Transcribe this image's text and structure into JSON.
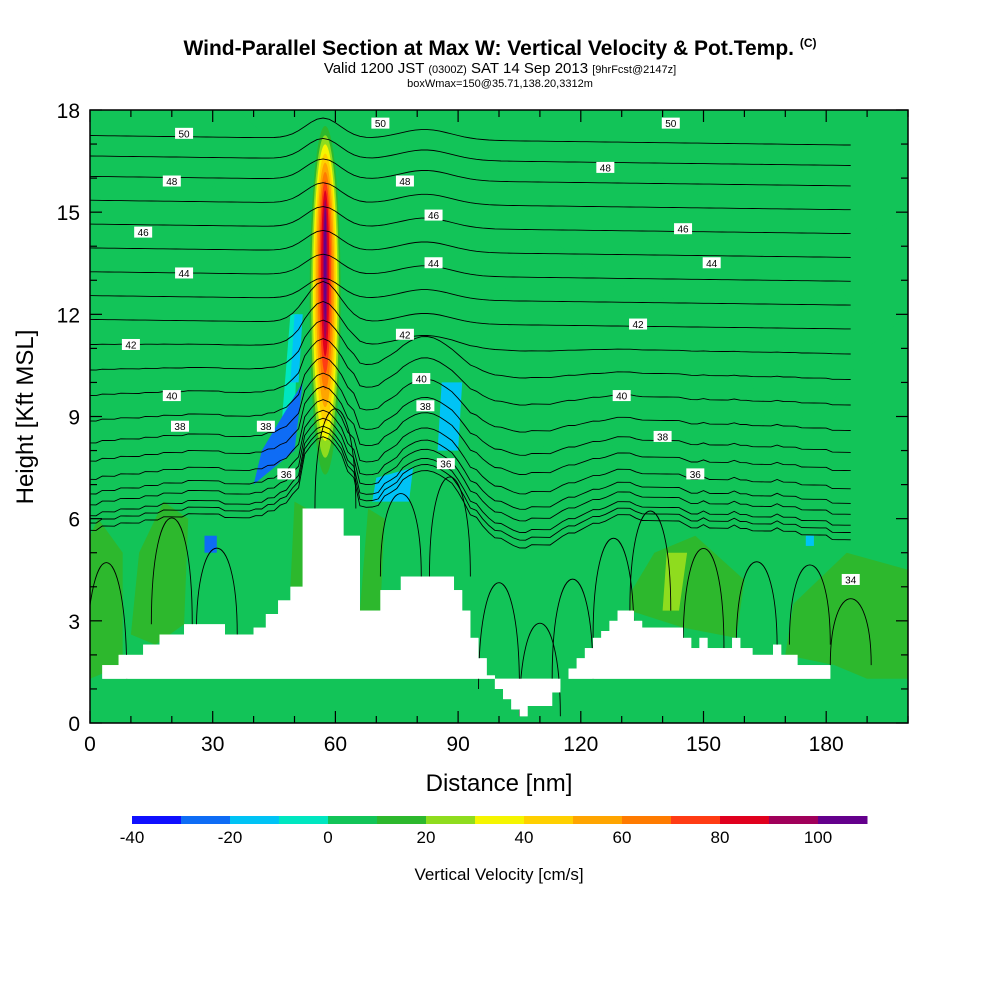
{
  "chart_data": {
    "type": "heatmap",
    "title": "Wind-Parallel Section at Max W: Vertical Velocity & Pot.Temp.",
    "title_mark": "(C)",
    "subtitle_main": "Valid 1200 JST",
    "subtitle_utc": "(0300Z)",
    "subtitle_date": "SAT 14 Sep 2013",
    "subtitle_fcst": "[9hrFcst@2147z]",
    "subtitle2": "boxWmax=150@35.71,138.20,3312m",
    "xlabel": "Distance [nm]",
    "ylabel": "Height [Kft MSL]",
    "xlim": [
      0,
      200
    ],
    "ylim": [
      0,
      18
    ],
    "x_ticks": [
      "0",
      "30",
      "60",
      "90",
      "120",
      "150",
      "180"
    ],
    "y_ticks": [
      "0",
      "3",
      "6",
      "9",
      "12",
      "15",
      "18"
    ],
    "colorbar": {
      "label": "Vertical Velocity [cm/s]",
      "tick_labels": [
        "-40",
        "-20",
        "0",
        "20",
        "40",
        "60",
        "80",
        "100"
      ],
      "bounds": [
        -40,
        -30,
        -20,
        -10,
        0,
        10,
        20,
        30,
        40,
        50,
        60,
        70,
        80,
        90,
        100,
        110
      ],
      "colors": [
        "#1010ff",
        "#0e6cf5",
        "#00c3f5",
        "#00e6c0",
        "#12c458",
        "#2db82d",
        "#8fdc1e",
        "#f5f500",
        "#ffd000",
        "#ffa500",
        "#ff7b00",
        "#ff3c14",
        "#e0001e",
        "#a0005a",
        "#64008c"
      ]
    },
    "background_value": 0,
    "terrain_profile": {
      "x": [
        0,
        3,
        3,
        7,
        7,
        13,
        13,
        17,
        17,
        23,
        23,
        33,
        33,
        40,
        40,
        43,
        43,
        46,
        46,
        49,
        49,
        52,
        52,
        62,
        62,
        66,
        66,
        71,
        71,
        76,
        76,
        89,
        89,
        91,
        91,
        93,
        93,
        95,
        95,
        97,
        97,
        99,
        99,
        101,
        101,
        103,
        103,
        105,
        105,
        107,
        107,
        113,
        113,
        115,
        115,
        117,
        117,
        119,
        119,
        121,
        121,
        123,
        123,
        125,
        125,
        127,
        127,
        129,
        129,
        131,
        131,
        133,
        133,
        135,
        135,
        145,
        145,
        147,
        147,
        149,
        149,
        151,
        151,
        157,
        157,
        159,
        159,
        162,
        162,
        167,
        167,
        169,
        169,
        173,
        173,
        181,
        181,
        187,
        187,
        200
      ],
      "h": [
        1.3,
        1.3,
        1.7,
        1.7,
        2.0,
        2.0,
        2.3,
        2.3,
        2.6,
        2.6,
        2.9,
        2.9,
        2.6,
        2.6,
        2.8,
        2.8,
        3.2,
        3.2,
        3.6,
        3.6,
        4.0,
        4.0,
        6.3,
        6.3,
        5.5,
        5.5,
        3.3,
        3.3,
        3.9,
        3.9,
        4.3,
        4.3,
        3.9,
        3.9,
        3.3,
        3.3,
        2.5,
        2.5,
        1.9,
        1.9,
        1.4,
        1.4,
        1.0,
        1.0,
        0.7,
        0.7,
        0.4,
        0.4,
        0.2,
        0.2,
        0.5,
        0.5,
        0.9,
        0.9,
        1.3,
        1.3,
        1.6,
        1.6,
        1.9,
        1.9,
        2.2,
        2.2,
        2.5,
        2.5,
        2.7,
        2.7,
        3.0,
        3.0,
        3.3,
        3.3,
        3.3,
        3.3,
        3.0,
        3.0,
        2.8,
        2.8,
        2.5,
        2.5,
        2.2,
        2.2,
        2.5,
        2.5,
        2.2,
        2.2,
        2.5,
        2.5,
        2.2,
        2.2,
        2.0,
        2.0,
        2.3,
        2.3,
        2.0,
        2.0,
        1.7,
        1.7,
        1.3,
        1.3
      ]
    },
    "w_regions": [
      {
        "value": 5,
        "x": [
          0,
          4,
          6,
          2
        ],
        "y": [
          13.5,
          13,
          18,
          18
        ]
      },
      {
        "value": 5,
        "x": [
          22,
          38,
          40,
          24
        ],
        "y": [
          16,
          15.5,
          18,
          18
        ]
      },
      {
        "value": 5,
        "x": [
          34,
          44,
          45,
          36,
          24,
          30
        ],
        "y": [
          14.5,
          14,
          17,
          18,
          18,
          16
        ]
      },
      {
        "value": 5,
        "x": [
          63,
          78,
          80,
          70
        ],
        "y": [
          12,
          12,
          16.5,
          18
        ]
      },
      {
        "value": 5,
        "x": [
          65,
          85,
          90,
          80,
          68
        ],
        "y": [
          11,
          9,
          7.5,
          8.5,
          9.5
        ]
      },
      {
        "value": 5,
        "x": [
          92,
          98,
          110,
          125,
          140,
          150,
          160,
          165,
          150,
          135,
          120,
          105,
          95,
          92
        ],
        "y": [
          8,
          12,
          14.5,
          13,
          12.5,
          10.5,
          10.5,
          9,
          8.5,
          8,
          8.3,
          8,
          7.5,
          8
        ]
      },
      {
        "value": 5,
        "x": [
          136,
          155,
          160,
          162,
          158,
          140,
          136
        ],
        "y": [
          17,
          18,
          18,
          16,
          15,
          16,
          17
        ]
      },
      {
        "value": 5,
        "x": [
          165,
          172,
          182,
          188,
          192,
          200,
          200,
          190,
          182,
          175,
          170,
          165
        ],
        "y": [
          9,
          12,
          13,
          12,
          14.5,
          15,
          12,
          11,
          9.5,
          9,
          8.8,
          9
        ]
      },
      {
        "value": 5,
        "x": [
          165,
          175,
          185,
          190,
          180,
          170,
          165
        ],
        "y": [
          18,
          18,
          16,
          15,
          14.5,
          16,
          18
        ]
      },
      {
        "value": 5,
        "x": [
          197,
          200,
          200,
          197
        ],
        "y": [
          16,
          16,
          18,
          18
        ]
      },
      {
        "value": 5,
        "x": [
          195,
          200,
          200,
          195
        ],
        "y": [
          6,
          6,
          8,
          8
        ]
      },
      {
        "value": 5,
        "x": [
          36,
          42,
          48,
          52,
          46,
          38,
          33
        ],
        "y": [
          7.5,
          8.2,
          9,
          7.5,
          6.5,
          6,
          7
        ]
      },
      {
        "value": 15,
        "x": [
          10,
          16,
          23,
          24,
          18,
          12
        ],
        "y": [
          2.6,
          2.3,
          2.9,
          6,
          6.5,
          5
        ]
      },
      {
        "value": 15,
        "x": [
          0,
          8,
          8,
          2,
          0
        ],
        "y": [
          1.3,
          1.7,
          5,
          6,
          5.5
        ]
      },
      {
        "value": 15,
        "x": [
          49,
          52,
          53,
          50
        ],
        "y": [
          4,
          4,
          6.3,
          6.5
        ]
      },
      {
        "value": 15,
        "x": [
          66,
          71,
          72,
          68
        ],
        "y": [
          3.3,
          3.3,
          6,
          6.3
        ]
      },
      {
        "value": 15,
        "x": [
          132,
          145,
          158,
          160,
          148,
          138,
          132
        ],
        "y": [
          3.3,
          2.8,
          2.5,
          4.2,
          5.5,
          5,
          3.8
        ]
      },
      {
        "value": 15,
        "x": [
          170,
          182,
          190,
          200,
          200,
          185,
          172
        ],
        "y": [
          2,
          1.7,
          1.3,
          1.3,
          4.5,
          5,
          3.5
        ]
      },
      {
        "value": 5,
        "x": [
          95,
          100,
          110,
          120,
          122,
          110,
          98
        ],
        "y": [
          2.5,
          1.0,
          0.3,
          1.6,
          4,
          4.5,
          3.8
        ]
      },
      {
        "value": 25,
        "x": [
          140,
          144,
          146,
          141
        ],
        "y": [
          3.3,
          3.3,
          5,
          5
        ]
      },
      {
        "value": -5,
        "x": [
          47,
          50,
          51,
          49
        ],
        "y": [
          9,
          9,
          12,
          12
        ]
      },
      {
        "value": -15,
        "x": [
          49,
          51,
          52,
          50
        ],
        "y": [
          10,
          10,
          12,
          12
        ]
      },
      {
        "value": -25,
        "x": [
          40,
          50,
          52,
          42
        ],
        "y": [
          7,
          8,
          10,
          8
        ]
      },
      {
        "value": -15,
        "x": [
          69,
          78,
          79,
          70
        ],
        "y": [
          6.5,
          6.5,
          7.5,
          7.2
        ]
      },
      {
        "value": -15,
        "x": [
          85,
          90,
          91,
          86
        ],
        "y": [
          8,
          8,
          10,
          10
        ]
      },
      {
        "value": -15,
        "x": [
          175,
          177,
          177,
          175
        ],
        "y": [
          5.2,
          5.2,
          5.5,
          5.5
        ]
      },
      {
        "value": -25,
        "x": [
          28,
          31,
          31,
          28
        ],
        "y": [
          5,
          5,
          5.5,
          5.5
        ]
      }
    ],
    "updraft_core": {
      "x": 57.5,
      "y_top": 17.8,
      "y_bottom": 6.8,
      "levels": [
        {
          "value": 5,
          "hw": 4.2
        },
        {
          "value": 15,
          "hw": 3.8
        },
        {
          "value": 25,
          "hw": 3.4
        },
        {
          "value": 35,
          "hw": 3.0
        },
        {
          "value": 45,
          "hw": 2.6
        },
        {
          "value": 55,
          "hw": 2.2
        },
        {
          "value": 65,
          "hw": 1.8
        },
        {
          "value": 75,
          "hw": 1.4
        },
        {
          "value": 85,
          "hw": 1.0
        },
        {
          "value": 95,
          "hw": 0.6
        },
        {
          "value": 105,
          "hw": 0.3
        }
      ]
    },
    "theta_contours": [
      {
        "label": "34",
        "base": 5.9,
        "label_at": {
          "x": 186,
          "y": 4.2
        }
      },
      {
        "label": "34",
        "base": 6.1
      },
      {
        "label": "34",
        "base": 6.3
      },
      {
        "label": "34",
        "base": 6.6
      },
      {
        "label": "34",
        "base": 6.9
      },
      {
        "label": "36",
        "base": 7.3,
        "label_at": {
          "x": 148,
          "y": 7.3
        }
      },
      {
        "label": "36",
        "base": 7.8
      },
      {
        "label": "38",
        "base": 8.3,
        "label_at": {
          "x": 140,
          "y": 8.4
        }
      },
      {
        "label": "38",
        "base": 8.9,
        "label_at": {
          "x": 22,
          "y": 8.7
        }
      },
      {
        "label": "40",
        "base": 9.6,
        "label_at": {
          "x": 130,
          "y": 9.6
        }
      },
      {
        "label": "40",
        "base": 10.3,
        "label_at": {
          "x": 20,
          "y": 9.6
        }
      },
      {
        "label": "42",
        "base": 11.0,
        "label_at": {
          "x": 134,
          "y": 11.7
        }
      },
      {
        "label": "42",
        "base": 11.7,
        "label_at": {
          "x": 10,
          "y": 11.1
        }
      },
      {
        "label": "44",
        "base": 12.4,
        "label_at": {
          "x": 152,
          "y": 13.5
        }
      },
      {
        "label": "44",
        "base": 13.1,
        "label_at": {
          "x": 23,
          "y": 13.2
        }
      },
      {
        "label": "46",
        "base": 13.8,
        "label_at": {
          "x": 145,
          "y": 14.5
        }
      },
      {
        "label": "46",
        "base": 14.5,
        "label_at": {
          "x": 13,
          "y": 14.4
        }
      },
      {
        "label": "48",
        "base": 15.2,
        "label_at": {
          "x": 126,
          "y": 16.3
        }
      },
      {
        "label": "48",
        "base": 15.9,
        "label_at": {
          "x": 20,
          "y": 15.9
        }
      },
      {
        "label": "50",
        "base": 16.5,
        "label_at": {
          "x": 71,
          "y": 17.6
        }
      },
      {
        "label": "50",
        "base": 17.1,
        "label_at": {
          "x": 23,
          "y": 17.3
        }
      }
    ],
    "extra_theta_labels": [
      {
        "label": "48",
        "x": 77,
        "y": 15.9
      },
      {
        "label": "46",
        "x": 84,
        "y": 14.9
      },
      {
        "label": "44",
        "x": 84,
        "y": 13.5
      },
      {
        "label": "42",
        "x": 77,
        "y": 11.4
      },
      {
        "label": "40",
        "x": 81,
        "y": 10.1
      },
      {
        "label": "38",
        "x": 82,
        "y": 9.3
      },
      {
        "label": "36",
        "x": 87,
        "y": 7.6
      },
      {
        "label": "38",
        "x": 43,
        "y": 8.7
      },
      {
        "label": "36",
        "x": 48,
        "y": 7.3
      },
      {
        "label": "50",
        "x": 142,
        "y": 17.6
      }
    ]
  }
}
